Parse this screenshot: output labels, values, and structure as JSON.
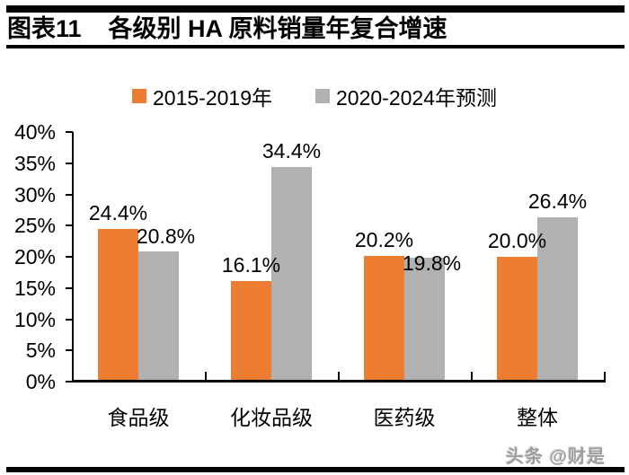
{
  "header": {
    "title_prefix": "图表11",
    "title_text": "各级别 HA 原料销量年复合增速"
  },
  "chart_data": {
    "type": "bar",
    "title": "各级别 HA 原料销量年复合增速",
    "categories": [
      "食品级",
      "化妆品级",
      "医药级",
      "整体"
    ],
    "series": [
      {
        "name": "2015-2019年",
        "color": "#ED7D31",
        "values": [
          24.4,
          16.1,
          20.2,
          20.0
        ],
        "labels": [
          "24.4%",
          "16.1%",
          "20.2%",
          "20.0%"
        ]
      },
      {
        "name": "2020-2024年预测",
        "color": "#B1B1B1",
        "values": [
          20.8,
          34.4,
          19.8,
          26.4
        ],
        "labels": [
          "20.8%",
          "34.4%",
          "19.8%",
          "26.4%"
        ]
      }
    ],
    "xlabel": "",
    "ylabel": "",
    "ylim": [
      0,
      40
    ],
    "ytick_step": 5,
    "ytick_labels": [
      "0%",
      "5%",
      "10%",
      "15%",
      "20%",
      "25%",
      "30%",
      "35%",
      "40%"
    ],
    "grid": false,
    "legend_position": "top",
    "data_label_format": "percent_one_decimal"
  },
  "watermark": "头条 @财是"
}
